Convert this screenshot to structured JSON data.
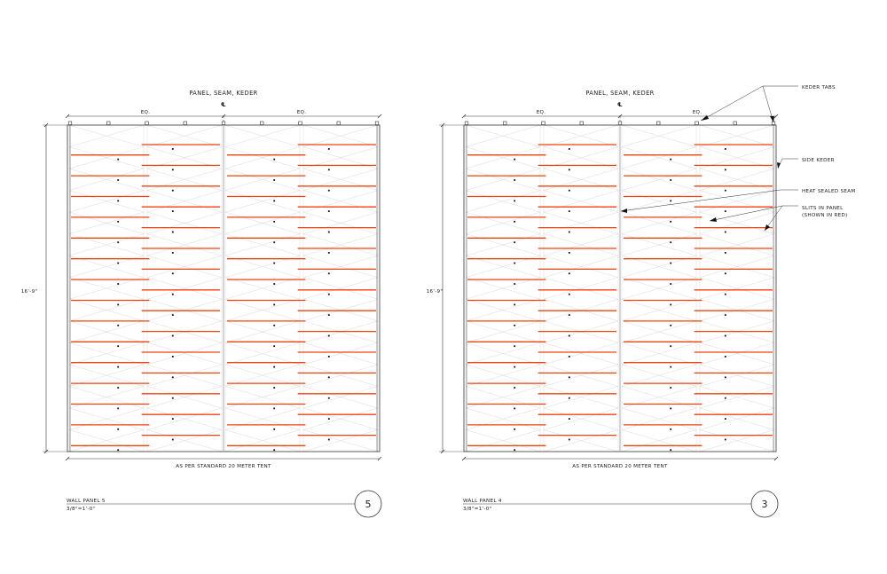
{
  "colors": {
    "line": "#333333",
    "slit": "#ee4411",
    "hatch": "#cfcfcf",
    "background": "#ffffff"
  },
  "panels": [
    {
      "id": "left",
      "top_label": "PANEL, SEAM, KEDER",
      "centerline_symbol": "℄",
      "eq_left": "EQ.",
      "eq_right": "EQ.",
      "height_label": "16'-9\"",
      "bottom_label": "AS PER STANDARD 20 METER TENT",
      "title": "WALL PANEL 5",
      "scale": "3/8\"=1'-0\"",
      "number": "5"
    },
    {
      "id": "right",
      "top_label": "PANEL, SEAM, KEDER",
      "centerline_symbol": "℄",
      "eq_left": "EQ.",
      "eq_right": "EQ.",
      "height_label": "16'-9\"",
      "bottom_label": "AS PER STANDARD 20 METER TENT",
      "title": "WALL PANEL 4",
      "scale": "3/8\"=1'-0\"",
      "number": "3"
    }
  ],
  "callouts": {
    "keder_tabs": "KEDER TABS",
    "side_keder": "SIDE KEDER",
    "heat_sealed_seam": "HEAT SEALED SEAM",
    "slits_line1": "SLITS IN PANEL",
    "slits_line2": "(SHOWN IN RED)"
  }
}
